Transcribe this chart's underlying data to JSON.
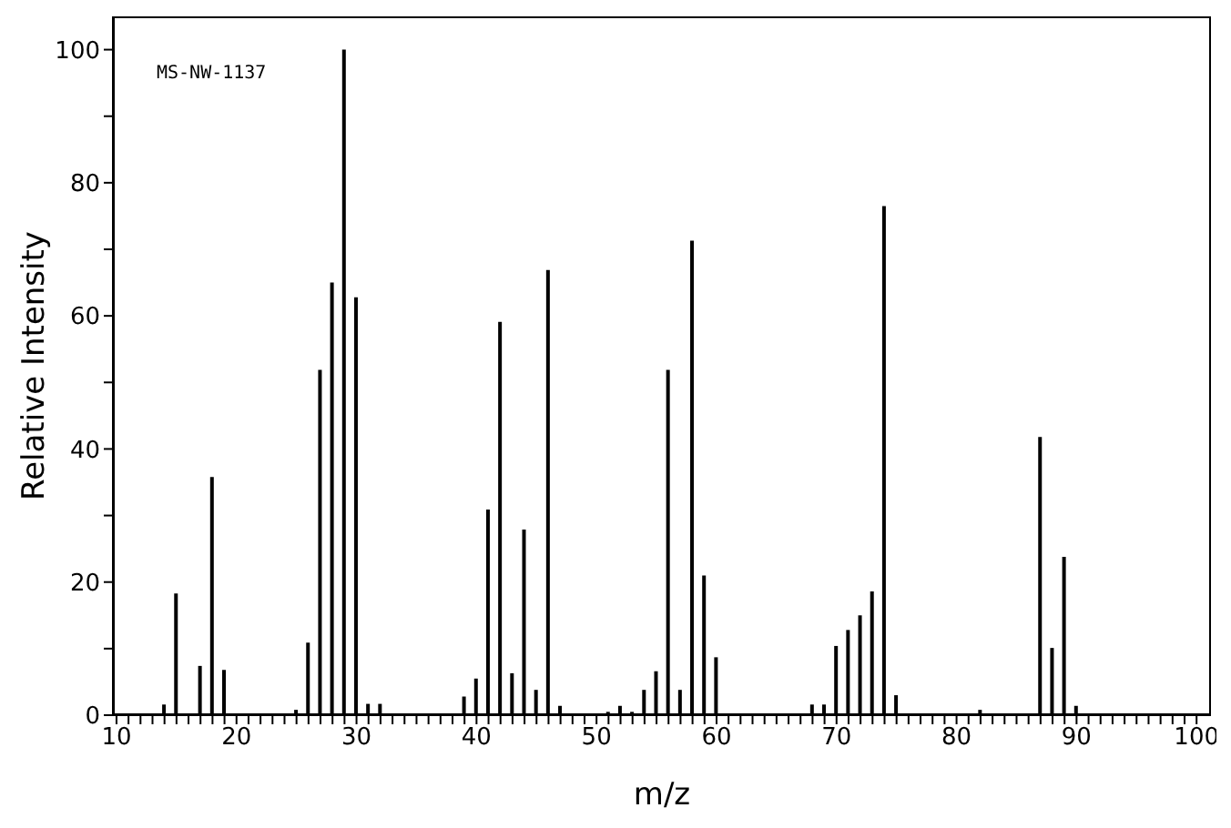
{
  "chart_data": {
    "type": "bar",
    "xlabel": "m/z",
    "ylabel": "Relative Intensity",
    "annotations": [
      "MS-NW-1137"
    ],
    "x": [
      14,
      15,
      16,
      17,
      18,
      19,
      25,
      26,
      27,
      28,
      29,
      30,
      31,
      32,
      39,
      40,
      41,
      42,
      43,
      44,
      45,
      46,
      47,
      51,
      52,
      53,
      54,
      55,
      56,
      57,
      58,
      59,
      60,
      68,
      69,
      70,
      71,
      72,
      73,
      74,
      75,
      82,
      87,
      88,
      89,
      90
    ],
    "series": [
      {
        "color": "#000000",
        "values": [
          1.6,
          18.3,
          null,
          7.4,
          35.8,
          6.8,
          0.8,
          10.9,
          51.9,
          65,
          100,
          62.8,
          1.7,
          1.7,
          2.8,
          5.5,
          30.9,
          59.1,
          6.3,
          27.9,
          3.8,
          66.9,
          1.4,
          0.5,
          1.4,
          0.5,
          3.8,
          6.6,
          51.9,
          3.8,
          71.3,
          21,
          8.7,
          1.6,
          1.6,
          10.4,
          12.8,
          15,
          18.6,
          76.5,
          3,
          0.8,
          41.8,
          10.1,
          23.8,
          1.4
        ]
      }
    ],
    "xlim": [
      9.7,
      101.2
    ],
    "ylim": [
      0,
      105
    ],
    "xticks": [
      10,
      {
        "value": 11,
        "label": null
      },
      {
        "value": 12,
        "label": null
      },
      {
        "value": 13,
        "label": null
      },
      {
        "value": 14,
        "label": null
      },
      {
        "value": 15,
        "label": null
      },
      {
        "value": 16,
        "label": null
      },
      {
        "value": 17,
        "label": null
      },
      {
        "value": 18,
        "label": null
      },
      {
        "value": 19,
        "label": null
      },
      20,
      {
        "value": 21,
        "label": null
      },
      {
        "value": 22,
        "label": null
      },
      {
        "value": 23,
        "label": null
      },
      {
        "value": 24,
        "label": null
      },
      {
        "value": 25,
        "label": null
      },
      {
        "value": 26,
        "label": null
      },
      {
        "value": 27,
        "label": null
      },
      {
        "value": 28,
        "label": null
      },
      {
        "value": 29,
        "label": null
      },
      30,
      {
        "value": 31,
        "label": null
      },
      {
        "value": 32,
        "label": null
      },
      {
        "value": 33,
        "label": null
      },
      {
        "value": 34,
        "label": null
      },
      {
        "value": 35,
        "label": null
      },
      {
        "value": 36,
        "label": null
      },
      {
        "value": 37,
        "label": null
      },
      {
        "value": 38,
        "label": null
      },
      {
        "value": 39,
        "label": null
      },
      40,
      {
        "value": 41,
        "label": null
      },
      {
        "value": 42,
        "label": null
      },
      {
        "value": 43,
        "label": null
      },
      {
        "value": 44,
        "label": null
      },
      {
        "value": 45,
        "label": null
      },
      {
        "value": 46,
        "label": null
      },
      {
        "value": 47,
        "label": null
      },
      {
        "value": 48,
        "label": null
      },
      {
        "value": 49,
        "label": null
      },
      50,
      {
        "value": 51,
        "label": null
      },
      {
        "value": 52,
        "label": null
      },
      {
        "value": 53,
        "label": null
      },
      {
        "value": 54,
        "label": null
      },
      {
        "value": 55,
        "label": null
      },
      {
        "value": 56,
        "label": null
      },
      {
        "value": 57,
        "label": null
      },
      {
        "value": 58,
        "label": null
      },
      {
        "value": 59,
        "label": null
      },
      60,
      {
        "value": 61,
        "label": null
      },
      {
        "value": 62,
        "label": null
      },
      {
        "value": 63,
        "label": null
      },
      {
        "value": 64,
        "label": null
      },
      {
        "value": 65,
        "label": null
      },
      {
        "value": 66,
        "label": null
      },
      {
        "value": 67,
        "label": null
      },
      {
        "value": 68,
        "label": null
      },
      {
        "value": 69,
        "label": null
      },
      70,
      {
        "value": 71,
        "label": null
      },
      {
        "value": 72,
        "label": null
      },
      {
        "value": 73,
        "label": null
      },
      {
        "value": 74,
        "label": null
      },
      {
        "value": 75,
        "label": null
      },
      {
        "value": 76,
        "label": null
      },
      {
        "value": 77,
        "label": null
      },
      {
        "value": 78,
        "label": null
      },
      {
        "value": 79,
        "label": null
      },
      80,
      {
        "value": 81,
        "label": null
      },
      {
        "value": 82,
        "label": null
      },
      {
        "value": 83,
        "label": null
      },
      {
        "value": 84,
        "label": null
      },
      {
        "value": 85,
        "label": null
      },
      {
        "value": 86,
        "label": null
      },
      {
        "value": 87,
        "label": null
      },
      {
        "value": 88,
        "label": null
      },
      {
        "value": 89,
        "label": null
      },
      90,
      {
        "value": 91,
        "label": null
      },
      {
        "value": 92,
        "label": null
      },
      {
        "value": 93,
        "label": null
      },
      {
        "value": 94,
        "label": null
      },
      {
        "value": 95,
        "label": null
      },
      {
        "value": 96,
        "label": null
      },
      {
        "value": 97,
        "label": null
      },
      {
        "value": 98,
        "label": null
      },
      {
        "value": 99,
        "label": null
      },
      100
    ],
    "yticks": [
      0,
      {
        "value": 10,
        "label": null
      },
      20,
      {
        "value": 30,
        "label": null
      },
      40,
      {
        "value": 50,
        "label": null
      },
      60,
      {
        "value": 70,
        "label": null
      },
      80,
      {
        "value": 90,
        "label": null
      },
      100
    ],
    "grid": false,
    "legend": false
  }
}
